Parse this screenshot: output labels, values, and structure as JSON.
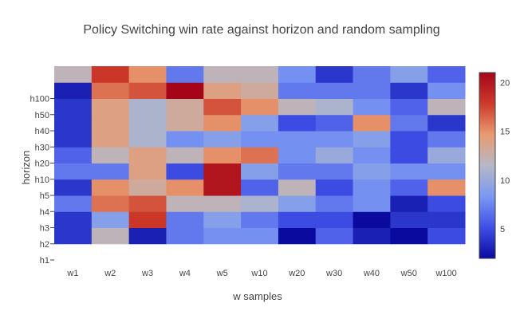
{
  "chart_data": {
    "type": "heatmap",
    "title": "Policy Switching win rate against horizon and random sampling",
    "xlabel": "w samples",
    "ylabel": "horizon",
    "x_categories": [
      "w1",
      "w2",
      "w3",
      "w4",
      "w5",
      "w10",
      "w20",
      "w30",
      "w40",
      "w50",
      "w100"
    ],
    "y_categories": [
      "h1",
      "h2",
      "h3",
      "h4",
      "h5",
      "h10",
      "h20",
      "h30",
      "h40",
      "h50",
      "h100",
      ""
    ],
    "z": [
      [
        null,
        null,
        null,
        null,
        null,
        null,
        null,
        null,
        null,
        null,
        null
      ],
      [
        4,
        12,
        3,
        7,
        8,
        8,
        2,
        6,
        3,
        2,
        5
      ],
      [
        4,
        9,
        18,
        7,
        9,
        7,
        5,
        5,
        2,
        4,
        4
      ],
      [
        7,
        16,
        17,
        12,
        12,
        11,
        9,
        7,
        8,
        3,
        5
      ],
      [
        4,
        15,
        13,
        15,
        20,
        6,
        12,
        5,
        8,
        6,
        15
      ],
      [
        7,
        7,
        14,
        5,
        20,
        9,
        7,
        7,
        9,
        8,
        8
      ],
      [
        6,
        12,
        14,
        12,
        15,
        16,
        8,
        10,
        8,
        5,
        10
      ],
      [
        4,
        14,
        11,
        8,
        9,
        8,
        8,
        8,
        9,
        5,
        7
      ],
      [
        4,
        14,
        11,
        13,
        15,
        9,
        5,
        6,
        15,
        7,
        4
      ],
      [
        4,
        14,
        11,
        13,
        17,
        15,
        12,
        11,
        8,
        6,
        12
      ],
      [
        3,
        16,
        17,
        21,
        14,
        13,
        7,
        7,
        7,
        4,
        8
      ],
      [
        12,
        18,
        15,
        7,
        12,
        12,
        8,
        4,
        7,
        9,
        6
      ]
    ],
    "colorbar": {
      "min": 2,
      "max": 21,
      "ticks": [
        5,
        10,
        15,
        20
      ]
    },
    "colorscale": [
      "#0a0a9e",
      "#3f4fe6",
      "#7a98f2",
      "#b5b8c6",
      "#e99a70",
      "#cc3a2a",
      "#a50519"
    ]
  }
}
